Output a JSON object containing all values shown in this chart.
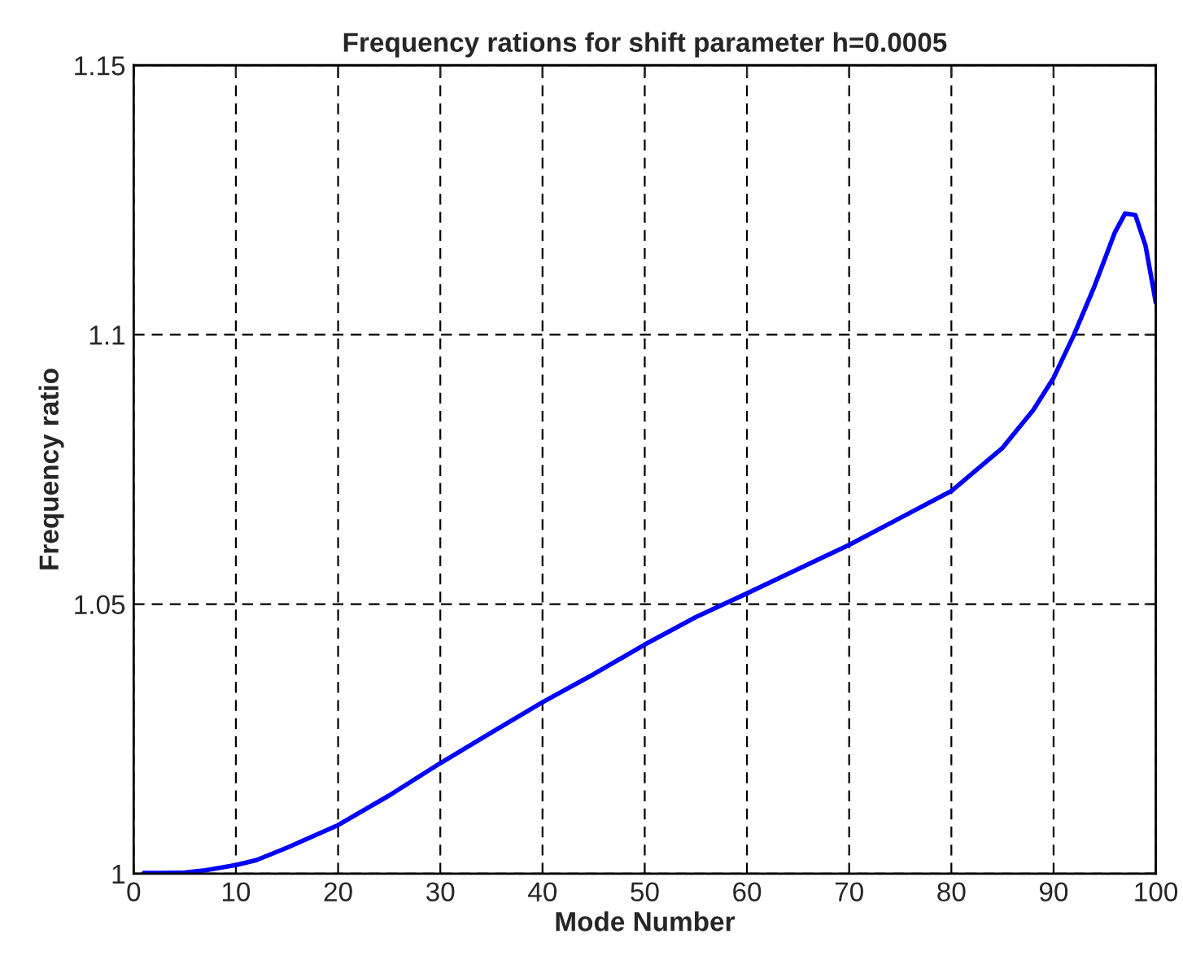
{
  "chart_data": {
    "type": "line",
    "title": "Frequency rations for shift parameter h=0.0005",
    "xlabel": "Mode Number",
    "ylabel": "Frequency ratio",
    "series": [
      {
        "color": "#0000ff",
        "x": [
          1,
          3,
          5,
          7,
          10,
          12,
          15,
          20,
          25,
          30,
          35,
          40,
          45,
          50,
          55,
          60,
          65,
          70,
          75,
          80,
          85,
          88,
          90,
          92,
          94,
          95,
          96,
          97,
          98,
          99,
          100
        ],
        "values": [
          1.0001,
          1.0001,
          1.0002,
          1.0006,
          1.0016,
          1.0025,
          1.0048,
          1.009,
          1.0145,
          1.0205,
          1.0262,
          1.0318,
          1.037,
          1.0425,
          1.0476,
          1.052,
          1.0565,
          1.061,
          1.066,
          1.071,
          1.079,
          1.086,
          1.092,
          1.1,
          1.109,
          1.114,
          1.119,
          1.1225,
          1.1222,
          1.1165,
          1.106
        ]
      }
    ],
    "xlim": [
      0,
      100
    ],
    "ylim": [
      1,
      1.15
    ],
    "xticks": [
      0,
      10,
      20,
      30,
      40,
      50,
      60,
      70,
      80,
      90,
      100
    ],
    "yticks": [
      1,
      1.05,
      1.1,
      1.15
    ],
    "grid": true,
    "line_style": "solid",
    "marker": "none"
  }
}
